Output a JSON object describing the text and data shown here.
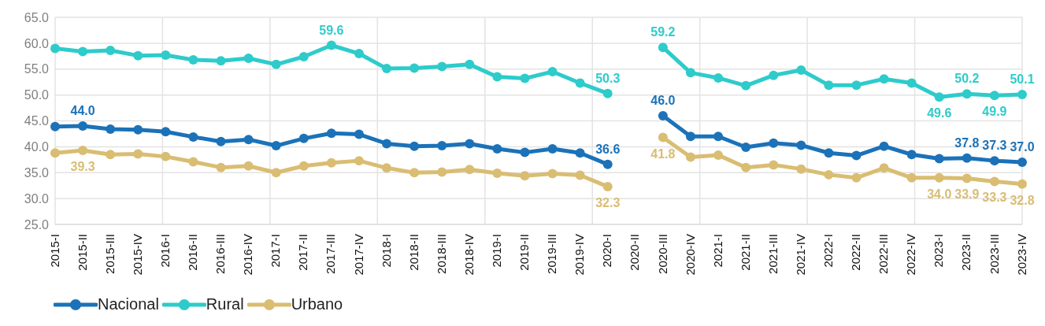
{
  "chart_data": {
    "type": "line",
    "categories": [
      "2015-I",
      "2015-II",
      "2015-III",
      "2015-IV",
      "2016-I",
      "2016-II",
      "2016-III",
      "2016-IV",
      "2017-I",
      "2017-II",
      "2017-III",
      "2017-IV",
      "2018-I",
      "2018-II",
      "2018-III",
      "2018-IV",
      "2019-I",
      "2019-II",
      "2019-III",
      "2019-IV",
      "2020-I",
      "2020-II",
      "2020-III",
      "2020-IV",
      "2021-I",
      "2021-II",
      "2021-III",
      "2021-IV",
      "2022-I",
      "2022-II",
      "2022-III",
      "2022-IV",
      "2023-I",
      "2023-II",
      "2023-III",
      "2023-IV"
    ],
    "series": [
      {
        "name": "Nacional",
        "color": "#1b72b8",
        "values": [
          43.9,
          44.0,
          43.4,
          43.3,
          42.9,
          41.9,
          41.0,
          41.4,
          40.2,
          41.6,
          42.6,
          42.4,
          40.6,
          40.1,
          40.2,
          40.6,
          39.6,
          38.9,
          39.6,
          38.8,
          36.6,
          null,
          46.0,
          42.0,
          42.0,
          39.9,
          40.7,
          40.3,
          38.8,
          38.3,
          40.1,
          38.5,
          37.7,
          37.8,
          37.3,
          37.0
        ],
        "value_labels": [
          null,
          "44.0",
          null,
          null,
          null,
          null,
          null,
          null,
          null,
          null,
          null,
          null,
          null,
          null,
          null,
          null,
          null,
          null,
          null,
          null,
          "36.6",
          null,
          "46.0",
          null,
          null,
          null,
          null,
          null,
          null,
          null,
          null,
          null,
          null,
          "37.8",
          "37.3",
          "37.0"
        ]
      },
      {
        "name": "Rural",
        "color": "#2ecbcb",
        "values": [
          59.0,
          58.4,
          58.6,
          57.6,
          57.7,
          56.8,
          56.6,
          57.1,
          55.9,
          57.4,
          59.6,
          58.0,
          55.1,
          55.2,
          55.5,
          55.9,
          53.5,
          53.2,
          54.5,
          52.3,
          50.3,
          null,
          59.2,
          54.3,
          53.3,
          51.8,
          53.8,
          54.8,
          51.9,
          51.9,
          53.1,
          52.3,
          49.6,
          50.2,
          49.9,
          50.1
        ],
        "value_labels": [
          null,
          null,
          null,
          null,
          null,
          null,
          null,
          null,
          null,
          null,
          "59.6",
          null,
          null,
          null,
          null,
          null,
          null,
          null,
          null,
          null,
          "50.3",
          null,
          "59.2",
          null,
          null,
          null,
          null,
          null,
          null,
          null,
          null,
          null,
          "49.6",
          "50.2",
          "49.9",
          "50.1"
        ]
      },
      {
        "name": "Urbano",
        "color": "#d9bd72",
        "values": [
          38.8,
          39.3,
          38.5,
          38.6,
          38.1,
          37.1,
          36.0,
          36.3,
          35.0,
          36.3,
          36.9,
          37.3,
          35.9,
          35.0,
          35.1,
          35.6,
          34.9,
          34.4,
          34.8,
          34.5,
          32.3,
          null,
          41.8,
          38.0,
          38.4,
          36.0,
          36.5,
          35.7,
          34.6,
          34.0,
          35.9,
          34.0,
          34.0,
          33.9,
          33.3,
          32.8
        ],
        "value_labels": [
          null,
          "39.3",
          null,
          null,
          null,
          null,
          null,
          null,
          null,
          null,
          null,
          null,
          null,
          null,
          null,
          null,
          null,
          null,
          null,
          null,
          "32.3",
          null,
          "41.8",
          null,
          null,
          null,
          null,
          null,
          null,
          null,
          null,
          null,
          "34.0",
          "33.9",
          "33.3",
          "32.8"
        ]
      }
    ],
    "ylim": [
      25,
      65
    ],
    "yticks": [
      {
        "value": 25,
        "label": "25.0"
      },
      {
        "value": 30,
        "label": "30.0"
      },
      {
        "value": 35,
        "label": "35.0"
      },
      {
        "value": 40,
        "label": "40.0"
      },
      {
        "value": 45,
        "label": "45.0"
      },
      {
        "value": 50,
        "label": "50.0"
      },
      {
        "value": 55,
        "label": "55.0"
      },
      {
        "value": 60,
        "label": "60.0"
      },
      {
        "value": 65,
        "label": "65.0"
      }
    ],
    "grid": true,
    "legend": "bottom left",
    "marker": "circle",
    "line_style": "solid"
  }
}
